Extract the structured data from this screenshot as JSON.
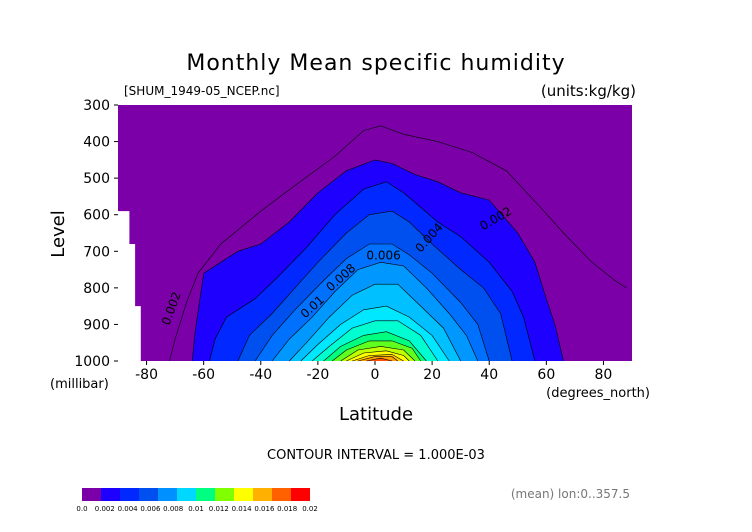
{
  "chart_data": {
    "type": "contour",
    "title": "Monthly Mean specific humidity",
    "subtitle_left": "[SHUM_1949-05_NCEP.nc]",
    "subtitle_right": "(units:kg/kg)",
    "xlabel": "Latitude",
    "x_units": "(degrees_north)",
    "ylabel": "Level",
    "y_units": "(millibar)",
    "xlim": [
      -90,
      90
    ],
    "ylim": [
      1000,
      300
    ],
    "x_ticks": [
      "-80",
      "-60",
      "-40",
      "-20",
      "0",
      "20",
      "40",
      "60",
      "80"
    ],
    "x_tick_values": [
      -80,
      -60,
      -40,
      -20,
      0,
      20,
      40,
      60,
      80
    ],
    "y_ticks": [
      "300",
      "400",
      "500",
      "600",
      "700",
      "800",
      "900",
      "1000"
    ],
    "y_tick_values": [
      300,
      400,
      500,
      600,
      700,
      800,
      900,
      1000
    ],
    "contour_interval_text": "CONTOUR INTERVAL = 1.000E-03",
    "footer_right": "(mean) lon:0..357.5",
    "contour_labels": [
      {
        "text": "0.002",
        "lat": 43,
        "lev": 620
      },
      {
        "text": "0.004",
        "lat": 20,
        "lev": 670
      },
      {
        "text": "0.006",
        "lat": 3,
        "lev": 722
      },
      {
        "text": "0.008",
        "lat": -11,
        "lev": 780
      },
      {
        "text": "0.01",
        "lat": -21,
        "lev": 860
      },
      {
        "text": "0.002",
        "lat": -70,
        "lev": 860
      }
    ],
    "levels": [
      0.002,
      0.003,
      0.004,
      0.005,
      0.006,
      0.007,
      0.008,
      0.009,
      0.01,
      0.011,
      0.012,
      0.013,
      0.014,
      0.015,
      0.016,
      0.017,
      0.018
    ],
    "peak_humidity_profile": {
      "lat": [
        -64,
        -60,
        -40,
        -20,
        0,
        10,
        20,
        40,
        60,
        66
      ],
      "note": "shapes drawn from level boundaries below"
    },
    "filled_regions": [
      {
        "min": 0.002,
        "boundary": [
          [
            -64,
            1000
          ],
          [
            -63,
            920
          ],
          [
            -60,
            760
          ],
          [
            -48,
            700
          ],
          [
            -40,
            680
          ],
          [
            -30,
            620
          ],
          [
            -20,
            540
          ],
          [
            -10,
            480
          ],
          [
            0,
            450
          ],
          [
            6,
            460
          ],
          [
            14,
            490
          ],
          [
            22,
            510
          ],
          [
            30,
            540
          ],
          [
            40,
            560
          ],
          [
            50,
            650
          ],
          [
            56,
            730
          ],
          [
            60,
            830
          ],
          [
            63,
            900
          ],
          [
            66,
            1000
          ]
        ]
      },
      {
        "min": 0.003,
        "boundary": [
          [
            -58,
            1000
          ],
          [
            -56,
            940
          ],
          [
            -52,
            880
          ],
          [
            -42,
            830
          ],
          [
            -34,
            770
          ],
          [
            -24,
            690
          ],
          [
            -14,
            600
          ],
          [
            -4,
            530
          ],
          [
            4,
            510
          ],
          [
            10,
            540
          ],
          [
            16,
            580
          ],
          [
            22,
            620
          ],
          [
            30,
            660
          ],
          [
            40,
            730
          ],
          [
            48,
            810
          ],
          [
            52,
            880
          ],
          [
            56,
            1000
          ]
        ]
      },
      {
        "min": 0.004,
        "boundary": [
          [
            -48,
            1000
          ],
          [
            -44,
            930
          ],
          [
            -36,
            870
          ],
          [
            -28,
            800
          ],
          [
            -20,
            730
          ],
          [
            -10,
            650
          ],
          [
            -2,
            600
          ],
          [
            6,
            590
          ],
          [
            12,
            620
          ],
          [
            20,
            680
          ],
          [
            30,
            750
          ],
          [
            38,
            800
          ],
          [
            44,
            870
          ],
          [
            48,
            1000
          ]
        ]
      },
      {
        "min": 0.005,
        "boundary": [
          [
            -42,
            1000
          ],
          [
            -36,
            930
          ],
          [
            -28,
            860
          ],
          [
            -18,
            780
          ],
          [
            -10,
            720
          ],
          [
            -2,
            680
          ],
          [
            6,
            680
          ],
          [
            12,
            710
          ],
          [
            20,
            760
          ],
          [
            30,
            840
          ],
          [
            36,
            900
          ],
          [
            40,
            1000
          ]
        ]
      },
      {
        "min": 0.006,
        "boundary": [
          [
            -36,
            1000
          ],
          [
            -30,
            940
          ],
          [
            -22,
            880
          ],
          [
            -14,
            810
          ],
          [
            -6,
            750
          ],
          [
            2,
            730
          ],
          [
            10,
            740
          ],
          [
            18,
            800
          ],
          [
            26,
            870
          ],
          [
            32,
            930
          ],
          [
            36,
            1000
          ]
        ]
      },
      {
        "min": 0.007,
        "boundary": [
          [
            -30,
            1000
          ],
          [
            -24,
            950
          ],
          [
            -16,
            880
          ],
          [
            -8,
            820
          ],
          [
            0,
            790
          ],
          [
            8,
            790
          ],
          [
            16,
            850
          ],
          [
            24,
            910
          ],
          [
            30,
            1000
          ]
        ]
      },
      {
        "min": 0.008,
        "boundary": [
          [
            -26,
            1000
          ],
          [
            -20,
            955
          ],
          [
            -12,
            900
          ],
          [
            -4,
            860
          ],
          [
            4,
            850
          ],
          [
            12,
            880
          ],
          [
            20,
            930
          ],
          [
            26,
            1000
          ]
        ]
      },
      {
        "min": 0.009,
        "boundary": [
          [
            -22,
            1000
          ],
          [
            -16,
            960
          ],
          [
            -8,
            910
          ],
          [
            0,
            890
          ],
          [
            8,
            890
          ],
          [
            16,
            930
          ],
          [
            22,
            1000
          ]
        ]
      },
      {
        "min": 0.01,
        "boundary": [
          [
            -18,
            1000
          ],
          [
            -12,
            960
          ],
          [
            -4,
            930
          ],
          [
            4,
            920
          ],
          [
            12,
            945
          ],
          [
            18,
            1000
          ]
        ]
      },
      {
        "min": 0.011,
        "boundary": [
          [
            -15,
            1000
          ],
          [
            -10,
            970
          ],
          [
            -2,
            945
          ],
          [
            6,
            945
          ],
          [
            13,
            965
          ],
          [
            16,
            1000
          ]
        ]
      },
      {
        "min": 0.012,
        "boundary": [
          [
            -12,
            1000
          ],
          [
            -6,
            970
          ],
          [
            2,
            960
          ],
          [
            10,
            970
          ],
          [
            14,
            1000
          ]
        ]
      },
      {
        "min": 0.013,
        "boundary": [
          [
            -10,
            1000
          ],
          [
            -4,
            978
          ],
          [
            4,
            972
          ],
          [
            10,
            985
          ],
          [
            12,
            1000
          ]
        ]
      },
      {
        "min": 0.014,
        "boundary": [
          [
            -8,
            1000
          ],
          [
            -2,
            985
          ],
          [
            6,
            982
          ],
          [
            10,
            1000
          ]
        ]
      },
      {
        "min": 0.015,
        "boundary": [
          [
            -6,
            1000
          ],
          [
            0,
            988
          ],
          [
            6,
            988
          ],
          [
            8,
            1000
          ]
        ]
      },
      {
        "min": 0.016,
        "boundary": [
          [
            -3,
            1000
          ],
          [
            2,
            992
          ],
          [
            6,
            1000
          ]
        ]
      }
    ],
    "line_only_contours": [
      {
        "value": 0.001,
        "points": [
          [
            -72,
            1000
          ],
          [
            -70,
            940
          ],
          [
            -66,
            840
          ],
          [
            -62,
            760
          ],
          [
            -54,
            680
          ],
          [
            -40,
            590
          ],
          [
            -28,
            520
          ],
          [
            -14,
            440
          ],
          [
            -4,
            370
          ],
          [
            2,
            357
          ],
          [
            10,
            380
          ],
          [
            22,
            400
          ],
          [
            34,
            430
          ],
          [
            46,
            480
          ],
          [
            58,
            580
          ],
          [
            66,
            650
          ],
          [
            76,
            730
          ],
          [
            84,
            780
          ],
          [
            88,
            800
          ]
        ]
      }
    ],
    "masked_region": [
      [
        -90,
        590
      ],
      [
        -86,
        590
      ],
      [
        -86,
        680
      ],
      [
        -84,
        680
      ],
      [
        -84,
        850
      ],
      [
        -82,
        850
      ],
      [
        -82,
        1000
      ],
      [
        -90,
        1000
      ]
    ],
    "colorbar": {
      "colors": [
        "#7c00a8",
        "#1e00ff",
        "#0028ff",
        "#0050f0",
        "#0090ff",
        "#00d8ff",
        "#00ff80",
        "#80ff00",
        "#ffff00",
        "#ffb000",
        "#ff6000",
        "#ff0000"
      ],
      "tick_labels": [
        "0.0",
        "0.002",
        "0.004",
        "0.006",
        "0.008",
        "0.01",
        "0.012",
        "0.014",
        "0.016",
        "0.018",
        "0.02"
      ]
    },
    "background_color": "#7c00a8"
  }
}
